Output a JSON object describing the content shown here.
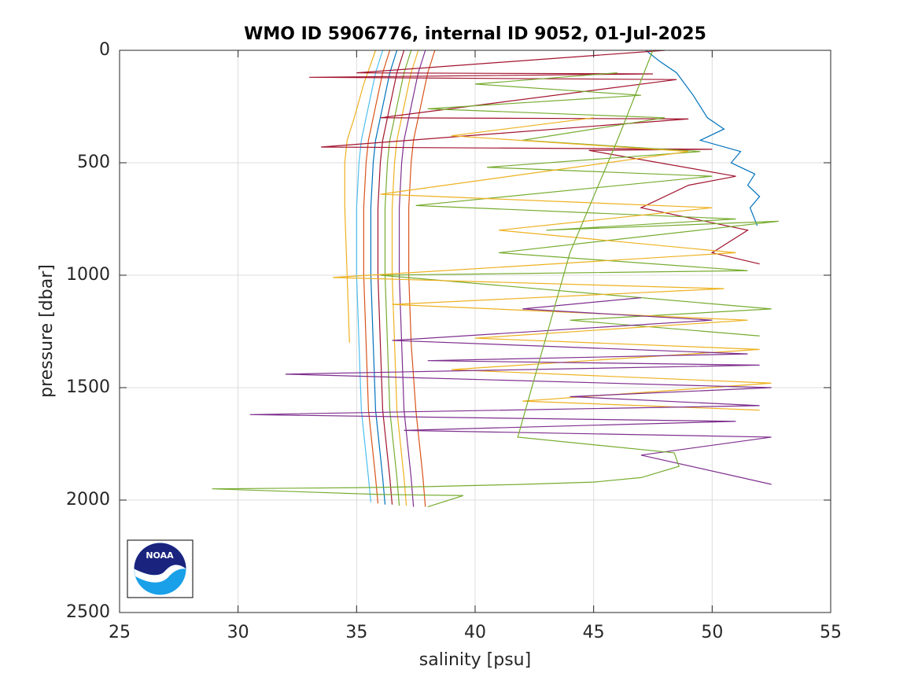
{
  "chart_data": {
    "type": "line",
    "title": "WMO ID 5906776, internal ID 9052, 01-Jul-2025",
    "x_label": "salinity [psu]",
    "y_label": "pressure [dbar]",
    "xlim": [
      25,
      55
    ],
    "xticks": [
      25,
      30,
      35,
      40,
      45,
      50,
      55
    ],
    "ylim": [
      0,
      2500
    ],
    "yticks": [
      0,
      500,
      1000,
      1500,
      2000,
      2500
    ],
    "y_reversed": true,
    "grid": true,
    "logo_text": "NOAA",
    "series": [
      {
        "color": "#4dbeee",
        "x": [
          36.1,
          35.8,
          35.6,
          35.4,
          35.2,
          35.1,
          35.0,
          35.0,
          35.1,
          35.2,
          35.5,
          35.6
        ],
        "values": [
          0,
          100,
          200,
          300,
          400,
          500,
          700,
          1000,
          1300,
          1600,
          1900,
          2010
        ]
      },
      {
        "color": "#d95319",
        "x": [
          36.4,
          36.1,
          35.9,
          35.7,
          35.5,
          35.4,
          35.3,
          35.3,
          35.4,
          35.5,
          35.8,
          35.9
        ],
        "values": [
          0,
          100,
          200,
          300,
          400,
          500,
          700,
          1000,
          1300,
          1600,
          1900,
          2015
        ]
      },
      {
        "color": "#0072bd",
        "x": [
          36.7,
          36.4,
          36.2,
          36.0,
          35.8,
          35.7,
          35.6,
          35.6,
          35.7,
          35.8,
          36.1,
          36.2
        ],
        "values": [
          0,
          100,
          200,
          300,
          400,
          500,
          700,
          1000,
          1300,
          1600,
          1900,
          2020
        ]
      },
      {
        "color": "#a2142f",
        "x": [
          37.0,
          36.7,
          36.5,
          36.3,
          36.1,
          36.0,
          35.9,
          35.9,
          36.0,
          36.1,
          36.4,
          36.5
        ],
        "values": [
          0,
          100,
          200,
          300,
          400,
          500,
          700,
          1000,
          1300,
          1600,
          1900,
          2020
        ]
      },
      {
        "color": "#77ac30",
        "x": [
          37.3,
          37.0,
          36.8,
          36.6,
          36.4,
          36.3,
          36.2,
          36.2,
          36.3,
          36.4,
          36.7,
          36.8
        ],
        "values": [
          0,
          100,
          200,
          300,
          400,
          500,
          700,
          1000,
          1300,
          1600,
          1900,
          2025
        ]
      },
      {
        "color": "#edb120",
        "x": [
          37.6,
          37.3,
          37.1,
          36.9,
          36.7,
          36.6,
          36.5,
          36.5,
          36.6,
          36.7,
          37.0,
          37.1
        ],
        "values": [
          0,
          100,
          200,
          300,
          400,
          500,
          700,
          1000,
          1300,
          1600,
          1900,
          2025
        ]
      },
      {
        "color": "#7e2f8e",
        "x": [
          37.9,
          37.6,
          37.4,
          37.2,
          37.0,
          36.9,
          36.8,
          36.8,
          36.9,
          37.0,
          37.3,
          37.4
        ],
        "values": [
          0,
          100,
          200,
          300,
          400,
          500,
          700,
          1000,
          1300,
          1600,
          1900,
          2030
        ]
      },
      {
        "color": "#d95319",
        "x": [
          38.3,
          38.0,
          37.8,
          37.6,
          37.4,
          37.3,
          37.2,
          37.2,
          37.3,
          37.5,
          37.8,
          37.9
        ],
        "values": [
          0,
          100,
          200,
          300,
          400,
          500,
          700,
          1000,
          1300,
          1600,
          1900,
          2030
        ]
      },
      {
        "color": "#edb120",
        "x": [
          35.8,
          35.3,
          34.9,
          34.6,
          34.5,
          34.5,
          34.6,
          34.7
        ],
        "values": [
          0,
          150,
          300,
          400,
          500,
          700,
          1000,
          1300
        ]
      },
      {
        "color": "#0072bd",
        "x": [
          47.2,
          47.8,
          48.5,
          49.2,
          49.8,
          50.5,
          49.5,
          51.2,
          50.8,
          51.8,
          51.5,
          52.0,
          51.6,
          51.9
        ],
        "values": [
          0,
          50,
          100,
          200,
          300,
          350,
          400,
          450,
          500,
          550,
          600,
          650,
          700,
          780
        ]
      },
      {
        "color": "#a2142f",
        "x": [
          48.0,
          35.0,
          47.5,
          33.0,
          48.5,
          36.0,
          49.0,
          33.5,
          50.0,
          44.8,
          51.0,
          49.0,
          47.0,
          51.5,
          50.0,
          52.0
        ],
        "values": [
          0,
          100,
          105,
          120,
          130,
          300,
          305,
          430,
          440,
          445,
          560,
          600,
          700,
          800,
          900,
          950
        ]
      },
      {
        "color": "#77ac30",
        "x": [
          46.0,
          40.0,
          47.0,
          38.0,
          48.0,
          42.0,
          49.5,
          40.5,
          50.0,
          37.5,
          51.0,
          43.0,
          52.8,
          41.0,
          51.5,
          36.0,
          52.5,
          44.0,
          52.0
        ],
        "values": [
          100,
          150,
          200,
          260,
          300,
          400,
          450,
          520,
          560,
          690,
          750,
          800,
          760,
          900,
          980,
          1000,
          1150,
          1200,
          1270
        ]
      },
      {
        "color": "#edb120",
        "x": [
          45.0,
          39.0,
          49.0,
          36.0,
          50.0,
          41.0,
          51.0,
          34.0,
          50.5,
          36.5,
          51.5,
          40.0,
          52.0,
          39.0,
          52.5,
          42.0,
          52.0
        ],
        "values": [
          300,
          380,
          450,
          640,
          700,
          800,
          900,
          1010,
          1060,
          1130,
          1200,
          1280,
          1330,
          1420,
          1480,
          1560,
          1600
        ]
      },
      {
        "color": "#7e2f8e",
        "x": [
          47.0,
          42.0,
          50.0,
          36.5,
          51.5,
          38.0,
          52.0,
          32.0,
          52.5,
          44.0,
          52.0,
          30.5,
          51.0,
          37.0,
          52.5,
          47.0,
          52.5
        ],
        "values": [
          1100,
          1150,
          1200,
          1290,
          1350,
          1380,
          1400,
          1440,
          1500,
          1540,
          1580,
          1620,
          1650,
          1690,
          1720,
          1800,
          1930
        ]
      },
      {
        "color": "#77ac30",
        "x": [
          47.5,
          46.0,
          44.0,
          41.8,
          48.4,
          48.6,
          47.0,
          45.0,
          42.0,
          38.0,
          35.0,
          28.9,
          36.0,
          39.5,
          38.0
        ],
        "values": [
          0,
          400,
          900,
          1720,
          1790,
          1850,
          1900,
          1920,
          1930,
          1940,
          1945,
          1950,
          1975,
          1980,
          2030
        ]
      }
    ]
  }
}
